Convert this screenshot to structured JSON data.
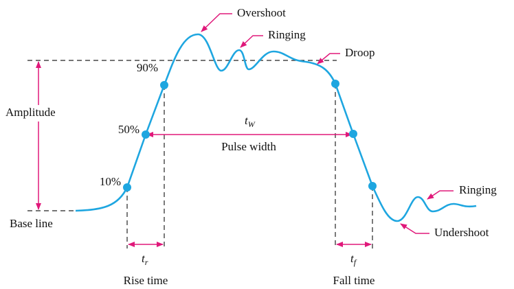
{
  "labels": {
    "overshoot": "Overshoot",
    "ringing_top": "Ringing",
    "droop": "Droop",
    "amplitude": "Amplitude",
    "base_line": "Base line",
    "level_90": "90%",
    "level_50": "50%",
    "level_10": "10%",
    "pulse_width_symbol": {
      "symbol": "t",
      "subscript": "W"
    },
    "pulse_width": "Pulse width",
    "rise_time_symbol": {
      "symbol": "t",
      "subscript": "r"
    },
    "rise_time": "Rise time",
    "fall_time_symbol": {
      "symbol": "t",
      "subscript": "f"
    },
    "fall_time": "Fall time",
    "ringing_bottom": "Ringing",
    "undershoot": "Undershoot"
  }
}
